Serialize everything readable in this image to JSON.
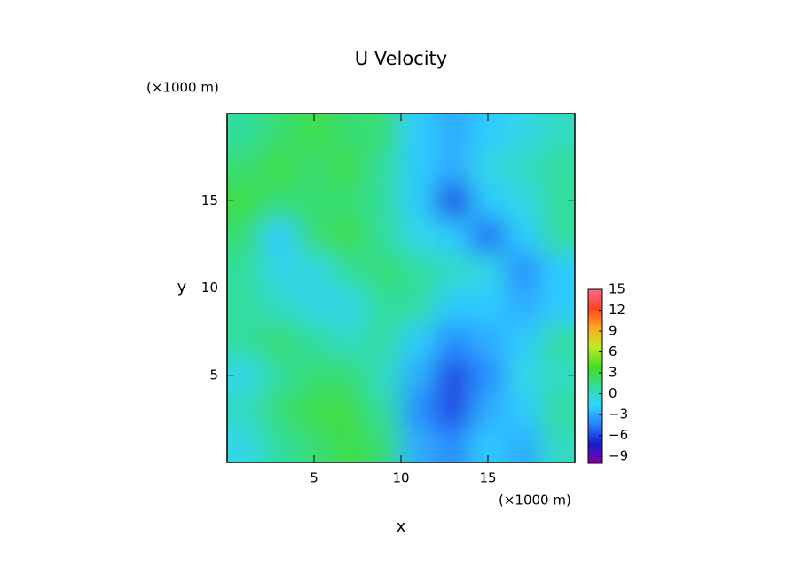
{
  "chart_data": {
    "type": "heatmap",
    "title": "U Velocity",
    "x_label": "x",
    "y_label": "y",
    "x_unit": "(×1000 m)",
    "y_unit": "(×1000 m)",
    "xlim": [
      0,
      20
    ],
    "ylim": [
      0,
      20
    ],
    "xticks": [
      5,
      10,
      15
    ],
    "yticks": [
      5,
      10,
      15
    ],
    "z": [
      [
        -1,
        1,
        2,
        3,
        2,
        -3,
        -4,
        -2,
        -3,
        0
      ],
      [
        0,
        2,
        3,
        3,
        1,
        -4,
        -6,
        -3,
        -2,
        1
      ],
      [
        -1,
        1,
        2,
        2,
        0,
        -3,
        -6,
        -4,
        -1,
        0
      ],
      [
        1,
        2,
        1,
        0,
        1,
        -2,
        -4,
        -3,
        -2,
        1
      ],
      [
        1,
        0,
        -1,
        -1,
        1,
        1,
        -2,
        -2,
        -3,
        -2
      ],
      [
        1,
        -1,
        -1,
        1,
        2,
        1,
        0,
        -1,
        -4,
        -2
      ],
      [
        2,
        -2,
        2,
        3,
        1,
        -1,
        -2,
        -5,
        -2,
        1
      ],
      [
        3,
        2,
        2,
        2,
        1,
        -2,
        -6,
        -2,
        -1,
        1
      ],
      [
        2,
        3,
        2,
        3,
        1,
        -2,
        -3,
        -1,
        0,
        1
      ],
      [
        1,
        2,
        3,
        2,
        2,
        -2,
        -3,
        -2,
        -1,
        0
      ]
    ],
    "clim": [
      -10,
      15
    ],
    "cticks": [
      15,
      12,
      9,
      6,
      3,
      0,
      {
        "value": -3,
        "label": "−3"
      },
      {
        "value": -6,
        "label": "−6"
      },
      {
        "value": -9,
        "label": "−9"
      }
    ],
    "colormap": [
      "#8800aa",
      "#1a1acc",
      "#2a7fff",
      "#2fd5ff",
      "#33dd99",
      "#44dd22",
      "#bbee22",
      "#ffaa22",
      "#ff4422",
      "#ff6688"
    ]
  }
}
